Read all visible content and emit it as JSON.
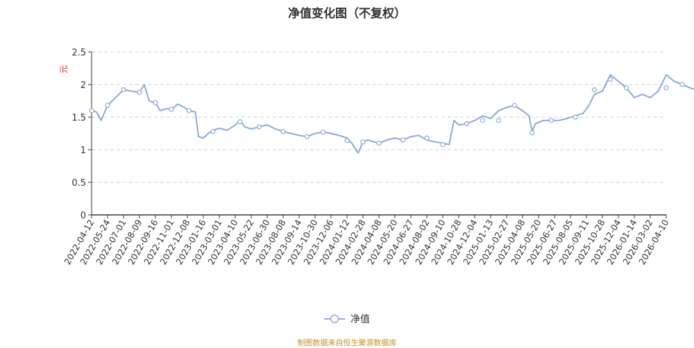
{
  "chart_data": {
    "type": "line",
    "title": "净值变化图（不复权）",
    "ylabel": "元",
    "xlabel": "",
    "ylim": [
      0,
      2.5
    ],
    "y_ticks": [
      "0",
      "0.5",
      "1",
      "1.5",
      "2",
      "2.5"
    ],
    "grid": true,
    "legend_position": "bottom-center",
    "line_color": "#8aa9d6",
    "ylabel_color": "#e03030",
    "x_tick_labels": [
      "2022-04-12",
      "2022-05-24",
      "2022-07-01",
      "2022-08-09",
      "2022-09-16",
      "2022-11-01",
      "2022-12-08",
      "2023-01-16",
      "2023-03-01",
      "2023-04-10",
      "2023-05-22",
      "2023-06-30",
      "2023-08-08",
      "2023-09-14",
      "2023-10-30",
      "2023-12-06",
      "2024-01-12",
      "2024-02-28",
      "2024-04-08",
      "2024-05-20",
      "2024-06-27",
      "2024-08-02",
      "2024-09-10",
      "2024-10-28",
      "2024-12-04",
      "2025-01-13",
      "2025-02-27",
      "2025-04-08",
      "2025-05-20",
      "2025-06-27",
      "2025-08-05",
      "2025-09-11",
      "2025-10-28",
      "2025-12-04",
      "2026-01-14",
      "2026-03-02",
      "2026-04-10"
    ],
    "series": [
      {
        "name": "净值",
        "points": [
          [
            0,
            1.6
          ],
          [
            0.3,
            1.58
          ],
          [
            0.6,
            1.45
          ],
          [
            1.0,
            1.68
          ],
          [
            1.5,
            1.8
          ],
          [
            2.0,
            1.92
          ],
          [
            2.5,
            1.9
          ],
          [
            3.0,
            1.88
          ],
          [
            3.3,
            2.0
          ],
          [
            3.6,
            1.75
          ],
          [
            4.0,
            1.72
          ],
          [
            4.3,
            1.6
          ],
          [
            4.7,
            1.63
          ],
          [
            5.0,
            1.62
          ],
          [
            5.4,
            1.7
          ],
          [
            5.8,
            1.65
          ],
          [
            6.1,
            1.6
          ],
          [
            6.5,
            1.58
          ],
          [
            6.7,
            1.2
          ],
          [
            7.0,
            1.18
          ],
          [
            7.3,
            1.25
          ],
          [
            7.6,
            1.3
          ],
          [
            8.0,
            1.33
          ],
          [
            8.5,
            1.3
          ],
          [
            9.0,
            1.38
          ],
          [
            9.3,
            1.45
          ],
          [
            9.6,
            1.35
          ],
          [
            10.0,
            1.32
          ],
          [
            10.5,
            1.35
          ],
          [
            11.0,
            1.38
          ],
          [
            11.5,
            1.32
          ],
          [
            12.0,
            1.28
          ],
          [
            12.5,
            1.25
          ],
          [
            13.0,
            1.22
          ],
          [
            13.5,
            1.2
          ],
          [
            14.0,
            1.25
          ],
          [
            14.5,
            1.27
          ],
          [
            15.0,
            1.25
          ],
          [
            15.5,
            1.22
          ],
          [
            16.0,
            1.18
          ],
          [
            16.3,
            1.1
          ],
          [
            16.7,
            0.95
          ],
          [
            17.0,
            1.12
          ],
          [
            17.3,
            1.15
          ],
          [
            17.7,
            1.12
          ],
          [
            18.0,
            1.1
          ],
          [
            18.5,
            1.15
          ],
          [
            19.0,
            1.18
          ],
          [
            19.5,
            1.15
          ],
          [
            20.0,
            1.2
          ],
          [
            20.5,
            1.22
          ],
          [
            21.0,
            1.15
          ],
          [
            21.5,
            1.12
          ],
          [
            22.0,
            1.1
          ],
          [
            22.4,
            1.08
          ],
          [
            22.7,
            1.45
          ],
          [
            23.0,
            1.38
          ],
          [
            23.5,
            1.4
          ],
          [
            24.0,
            1.45
          ],
          [
            24.5,
            1.52
          ],
          [
            25.0,
            1.48
          ],
          [
            25.5,
            1.6
          ],
          [
            26.0,
            1.65
          ],
          [
            26.5,
            1.68
          ],
          [
            27.0,
            1.6
          ],
          [
            27.4,
            1.52
          ],
          [
            27.6,
            1.28
          ],
          [
            27.8,
            1.4
          ],
          [
            28.3,
            1.45
          ],
          [
            28.8,
            1.45
          ],
          [
            29.3,
            1.45
          ],
          [
            29.8,
            1.48
          ],
          [
            30.3,
            1.52
          ],
          [
            30.8,
            1.56
          ],
          [
            31.2,
            1.7
          ],
          [
            31.5,
            1.85
          ],
          [
            32.0,
            1.9
          ],
          [
            32.5,
            2.15
          ],
          [
            33.0,
            2.05
          ],
          [
            33.5,
            1.95
          ],
          [
            34.0,
            1.8
          ],
          [
            34.5,
            1.85
          ],
          [
            35.0,
            1.8
          ],
          [
            35.5,
            1.9
          ],
          [
            36.0,
            2.15
          ],
          [
            36.5,
            2.05
          ],
          [
            37.0,
            2.0
          ],
          [
            37.5,
            1.95
          ],
          [
            38.0,
            1.9
          ],
          [
            38.4,
            1.85
          ],
          [
            38.6,
            1.95
          ]
        ],
        "markers": [
          [
            0,
            1.6
          ],
          [
            1.0,
            1.68
          ],
          [
            2.0,
            1.92
          ],
          [
            3.0,
            1.88
          ],
          [
            4.0,
            1.72
          ],
          [
            5.0,
            1.62
          ],
          [
            6.1,
            1.6
          ],
          [
            7.6,
            1.28
          ],
          [
            9.3,
            1.43
          ],
          [
            10.5,
            1.35
          ],
          [
            12.0,
            1.28
          ],
          [
            13.5,
            1.2
          ],
          [
            14.5,
            1.27
          ],
          [
            16.0,
            1.14
          ],
          [
            17.0,
            1.12
          ],
          [
            18.0,
            1.1
          ],
          [
            19.5,
            1.15
          ],
          [
            21.0,
            1.18
          ],
          [
            22.0,
            1.08
          ],
          [
            23.5,
            1.4
          ],
          [
            24.5,
            1.45
          ],
          [
            25.5,
            1.45
          ],
          [
            26.5,
            1.68
          ],
          [
            27.6,
            1.26
          ],
          [
            28.8,
            1.45
          ],
          [
            30.3,
            1.5
          ],
          [
            31.5,
            1.92
          ],
          [
            32.5,
            2.08
          ],
          [
            33.5,
            1.95
          ],
          [
            36.0,
            1.95
          ],
          [
            37.0,
            2.0
          ],
          [
            38.6,
            1.95
          ],
          [
            38.6,
            2.0
          ]
        ]
      }
    ]
  },
  "legend": {
    "label": "净值"
  },
  "footer": {
    "source": "制图数据来自恒生聚源数据库"
  }
}
